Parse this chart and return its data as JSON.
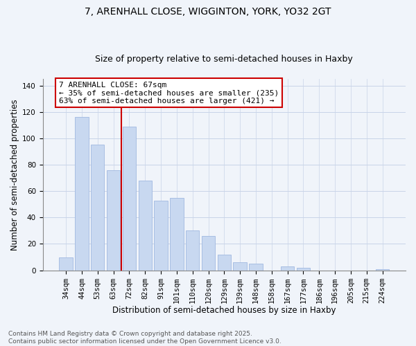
{
  "title_line1": "7, ARENHALL CLOSE, WIGGINTON, YORK, YO32 2GT",
  "title_line2": "Size of property relative to semi-detached houses in Haxby",
  "xlabel": "Distribution of semi-detached houses by size in Haxby",
  "ylabel": "Number of semi-detached properties",
  "categories": [
    "34sqm",
    "44sqm",
    "53sqm",
    "63sqm",
    "72sqm",
    "82sqm",
    "91sqm",
    "101sqm",
    "110sqm",
    "120sqm",
    "129sqm",
    "139sqm",
    "148sqm",
    "158sqm",
    "167sqm",
    "177sqm",
    "186sqm",
    "196sqm",
    "205sqm",
    "215sqm",
    "224sqm"
  ],
  "values": [
    10,
    116,
    95,
    76,
    109,
    68,
    53,
    55,
    30,
    26,
    12,
    6,
    5,
    0,
    3,
    2,
    0,
    0,
    0,
    0,
    1
  ],
  "bar_color": "#c8d8f0",
  "bar_edge_color": "#a0b8e0",
  "vline_x_index": 3,
  "vline_color": "#cc0000",
  "annotation_line1": "7 ARENHALL CLOSE: 67sqm",
  "annotation_line2": "← 35% of semi-detached houses are smaller (235)",
  "annotation_line3": "63% of semi-detached houses are larger (421) →",
  "annotation_box_color": "#ffffff",
  "annotation_box_edge": "#cc0000",
  "ylim": [
    0,
    145
  ],
  "yticks": [
    0,
    20,
    40,
    60,
    80,
    100,
    120,
    140
  ],
  "footer_line1": "Contains HM Land Registry data © Crown copyright and database right 2025.",
  "footer_line2": "Contains public sector information licensed under the Open Government Licence v3.0.",
  "bg_color": "#f0f4fa",
  "grid_color": "#c8d4e8",
  "title_fontsize": 10,
  "subtitle_fontsize": 9,
  "axis_label_fontsize": 8.5,
  "tick_fontsize": 7.5,
  "annotation_fontsize": 8,
  "footer_fontsize": 6.5
}
